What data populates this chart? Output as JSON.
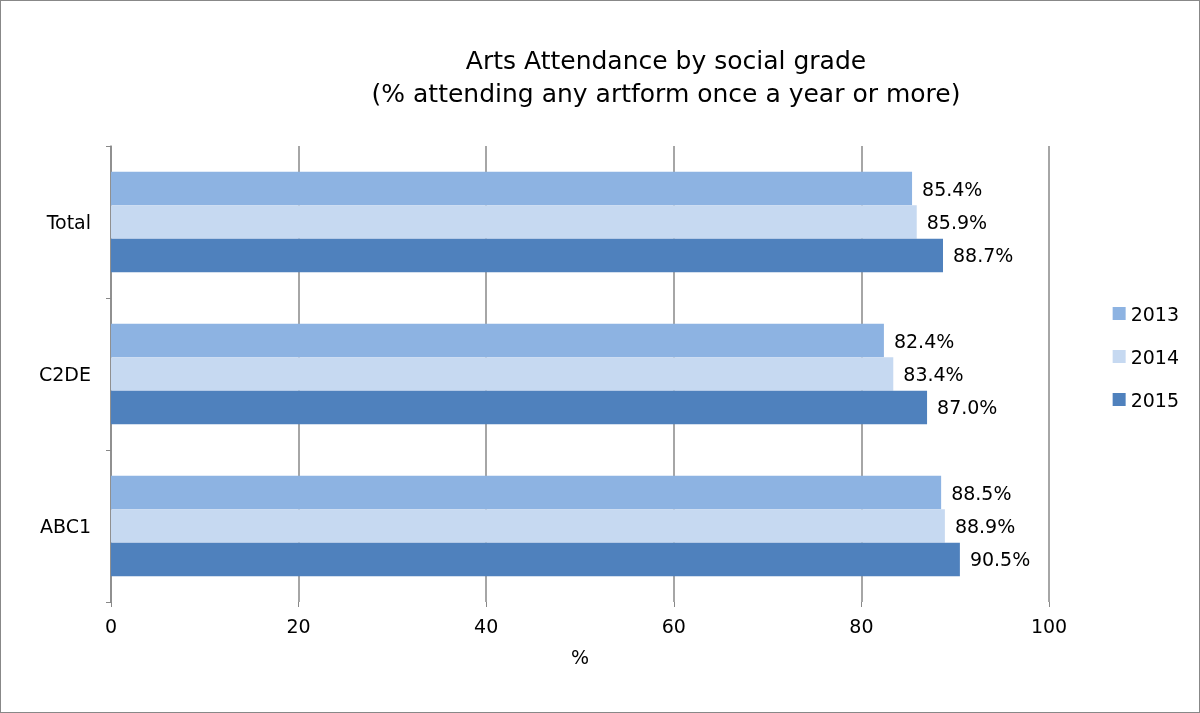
{
  "chart_data": {
    "type": "bar",
    "orientation": "horizontal",
    "title": "Arts Attendance by social grade",
    "subtitle": "(% attending any artform once a year or more)",
    "xlabel": "%",
    "categories": [
      "Total",
      "C2DE",
      "ABC1"
    ],
    "series": [
      {
        "name": "2013",
        "color": "#8db3e2",
        "values": [
          85.4,
          82.4,
          88.5
        ],
        "value_labels": [
          "85.4%",
          "82.4%",
          "88.5%"
        ]
      },
      {
        "name": "2014",
        "color": "#c6d9f1",
        "values": [
          85.9,
          83.4,
          88.9
        ],
        "value_labels": [
          "85.9%",
          "83.4%",
          "88.9%"
        ]
      },
      {
        "name": "2015",
        "color": "#4f81bd",
        "values": [
          88.7,
          87.0,
          90.5
        ],
        "value_labels": [
          "88.7%",
          "87.0%",
          "90.5%"
        ]
      }
    ],
    "xlim": [
      0,
      100
    ],
    "xticks": [
      0,
      20,
      40,
      60,
      80,
      100
    ],
    "grid": "x",
    "legend": "right"
  }
}
